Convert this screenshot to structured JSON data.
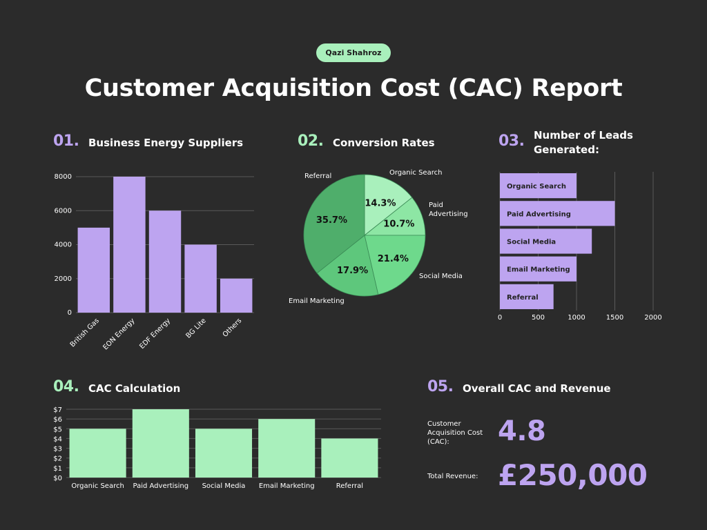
{
  "author": "Qazi Shahroz",
  "title": "Customer Acquisition Cost (CAC) Report",
  "colors": {
    "purple": "#bda4f0",
    "green": "#a9f0bc",
    "background": "#2b2b2b",
    "grid": "#5a5a5a"
  },
  "sections": {
    "s1": {
      "num": "01.",
      "title": "Business Energy Suppliers"
    },
    "s2": {
      "num": "02.",
      "title": "Conversion Rates"
    },
    "s3": {
      "num": "03.",
      "title": "Number of Leads Generated:"
    },
    "s4": {
      "num": "04.",
      "title": "CAC Calculation"
    },
    "s5": {
      "num": "05.",
      "title": "Overall CAC and Revenue"
    }
  },
  "chart_data": [
    {
      "type": "bar",
      "categories": [
        "British Gas",
        "EON Energy",
        "EDF Energy",
        "BG Lite",
        "Others"
      ],
      "values": [
        5000,
        8000,
        6000,
        4000,
        2000
      ],
      "ylim": [
        0,
        8000
      ],
      "yticks": [
        "0",
        "2000",
        "4000",
        "6000",
        "8000"
      ],
      "ytick_values": [
        0,
        2000,
        4000,
        6000,
        8000
      ],
      "grid": true,
      "color": "#bda4f0"
    },
    {
      "type": "pie",
      "categories": [
        "Organic Search",
        "Paid Advertising",
        "Social Media",
        "Email Marketing",
        "Referral"
      ],
      "values": [
        14.3,
        10.7,
        21.4,
        17.9,
        35.7
      ],
      "labels": [
        "14.3%",
        "10.7%",
        "21.4%",
        "17.9%",
        "35.7%"
      ],
      "legend_labels": [
        "Organic Search",
        "Paid Advertising",
        "Social Media",
        "Email Marketing",
        "Referral"
      ],
      "colors": [
        "#a9f0bc",
        "#8de6a4",
        "#6ed98c",
        "#5ec77c",
        "#4fae6b"
      ]
    },
    {
      "type": "bar",
      "orientation": "horizontal",
      "categories": [
        "Organic Search",
        "Paid Advertising",
        "Social Media",
        "Email Marketing",
        "Referral"
      ],
      "values": [
        1000,
        1500,
        1200,
        1000,
        700
      ],
      "xlim": [
        0,
        2000
      ],
      "xticks": [
        "0",
        "500",
        "1000",
        "1500",
        "2000"
      ],
      "xtick_values": [
        0,
        500,
        1000,
        1500,
        2000
      ],
      "grid": true,
      "color": "#bda4f0"
    },
    {
      "type": "bar",
      "categories": [
        "Organic Search",
        "Paid Advertising",
        "Social Media",
        "Email Marketing",
        "Referral"
      ],
      "values": [
        5,
        7,
        5,
        6,
        4
      ],
      "ylim": [
        0,
        7
      ],
      "yticks": [
        "$0",
        "$1",
        "$2",
        "$3",
        "$4",
        "$5",
        "$6",
        "$7"
      ],
      "ytick_values": [
        0,
        1,
        2,
        3,
        4,
        5,
        6,
        7
      ],
      "grid": true,
      "color": "#a9f0bc"
    }
  ],
  "overall": {
    "cac_label": "Customer Acquisition Cost (CAC):",
    "cac_value": "4.8",
    "revenue_label": "Total Revenue:",
    "revenue_value": "£250,000"
  }
}
